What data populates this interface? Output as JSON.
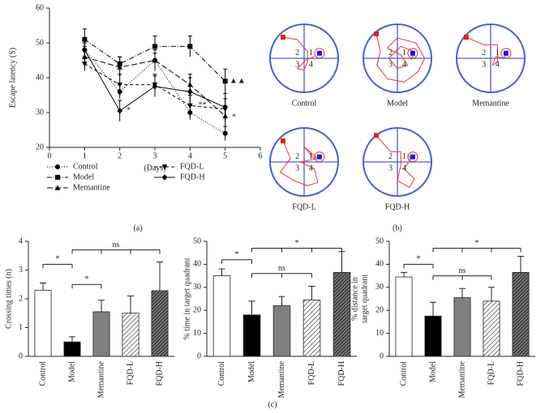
{
  "panel_labels": [
    "(a)",
    "(b)",
    "(c)"
  ],
  "maze": {
    "labels": [
      "Control",
      "Model",
      "Memantine",
      "FQD-L",
      "FQD-H"
    ],
    "quadrants": [
      "1",
      "2",
      "3",
      "4"
    ]
  },
  "chart_data": [
    {
      "type": "line",
      "xlabel": "(Days)",
      "ylabel": "Escape latency (S)",
      "x": [
        1,
        2,
        3,
        4,
        5
      ],
      "xlim": [
        0,
        6
      ],
      "xticks": [
        0,
        1,
        2,
        3,
        4,
        5,
        6
      ],
      "ylim": [
        20,
        60
      ],
      "yticks": [
        20,
        30,
        40,
        50,
        60
      ],
      "legend": "below",
      "series": [
        {
          "name": "Control",
          "color": "#000000",
          "marker": "circle",
          "dash": "1,2",
          "values": [
            48,
            36,
            45,
            30,
            24
          ],
          "errors": [
            2,
            2,
            2,
            2,
            2
          ]
        },
        {
          "name": "Model",
          "color": "#000000",
          "marker": "square",
          "dash": "6,2,1,2",
          "values": [
            51,
            44,
            49,
            49,
            39
          ],
          "errors": [
            3,
            2,
            3,
            3,
            3.5
          ]
        },
        {
          "name": "Memantine",
          "color": "#000000",
          "marker": "triangle",
          "dash": "7,3",
          "values": [
            46,
            43,
            45,
            38,
            29
          ],
          "errors": [
            3,
            3,
            3,
            3,
            3
          ]
        },
        {
          "name": "FQD-L",
          "color": "#000000",
          "marker": "triangle-down",
          "dash": "4,3",
          "values": [
            44,
            38,
            38,
            32,
            31
          ],
          "errors": [
            2,
            3,
            3,
            3,
            3
          ]
        },
        {
          "name": "FQD-H",
          "color": "#000000",
          "marker": "diamond",
          "dash": "none",
          "values": [
            48,
            30.5,
            37.5,
            36,
            31.5
          ],
          "errors": [
            3,
            3,
            3,
            4,
            4
          ]
        }
      ],
      "annotations": [
        {
          "text": "*",
          "x": 2.25,
          "y": 30.5
        },
        {
          "text": "**",
          "x": 4.35,
          "y": 32
        },
        {
          "text": "*",
          "x": 5.25,
          "y": 28.5
        },
        {
          "text": "▲▲",
          "x": 5.35,
          "y": 39
        }
      ]
    },
    {
      "type": "bar",
      "ylabel": "Crossing times (n)",
      "categories": [
        "Control",
        "Model",
        "Memantine",
        "FQD-L",
        "FQD-H"
      ],
      "values": [
        2.3,
        0.5,
        1.55,
        1.5,
        2.28
      ],
      "errors": [
        0.25,
        0.18,
        0.4,
        0.6,
        1.0
      ],
      "fills": [
        "white",
        "black",
        "gray",
        "hatch",
        "dense-hatch"
      ],
      "ylim": [
        0,
        4
      ],
      "yticks": [
        0,
        1,
        2,
        3,
        4
      ],
      "brackets": [
        {
          "from": 0,
          "to": 1,
          "y": 3.2,
          "label": "*"
        },
        {
          "from": 1,
          "to": 2,
          "y": 2.5,
          "label": "*"
        },
        {
          "from": 1,
          "to": 4,
          "y": 3.7,
          "label": "ns"
        }
      ]
    },
    {
      "type": "bar",
      "ylabel": "% time in target quadrant",
      "categories": [
        "Control",
        "Model",
        "Memantine",
        "FQD-L",
        "FQD-H"
      ],
      "values": [
        35,
        18,
        22,
        24.5,
        36.5
      ],
      "errors": [
        3,
        6,
        4,
        6,
        9
      ],
      "fills": [
        "white",
        "black",
        "gray",
        "hatch",
        "dense-hatch"
      ],
      "ylim": [
        0,
        50
      ],
      "yticks": [
        0,
        10,
        20,
        30,
        40,
        50
      ],
      "brackets": [
        {
          "from": 0,
          "to": 1,
          "y": 42,
          "label": "*"
        },
        {
          "from": 1,
          "to": 3,
          "y": 36,
          "label": "ns"
        },
        {
          "from": 1,
          "to": 4,
          "y": 47,
          "label": "*"
        }
      ]
    },
    {
      "type": "bar",
      "ylabel": [
        "% distance in",
        "target quadrant"
      ],
      "categories": [
        "Control",
        "Model",
        "Memantine",
        "FQD-L",
        "FQD-H"
      ],
      "values": [
        34.5,
        17.5,
        25.5,
        24,
        36.5
      ],
      "errors": [
        2,
        6,
        4,
        6,
        7
      ],
      "fills": [
        "white",
        "black",
        "gray",
        "hatch",
        "dense-hatch"
      ],
      "ylim": [
        0,
        50
      ],
      "yticks": [
        0,
        10,
        20,
        30,
        40,
        50
      ],
      "brackets": [
        {
          "from": 0,
          "to": 1,
          "y": 40,
          "label": "*"
        },
        {
          "from": 1,
          "to": 3,
          "y": 35,
          "label": "ns"
        },
        {
          "from": 1,
          "to": 4,
          "y": 47,
          "label": "*"
        }
      ]
    }
  ]
}
